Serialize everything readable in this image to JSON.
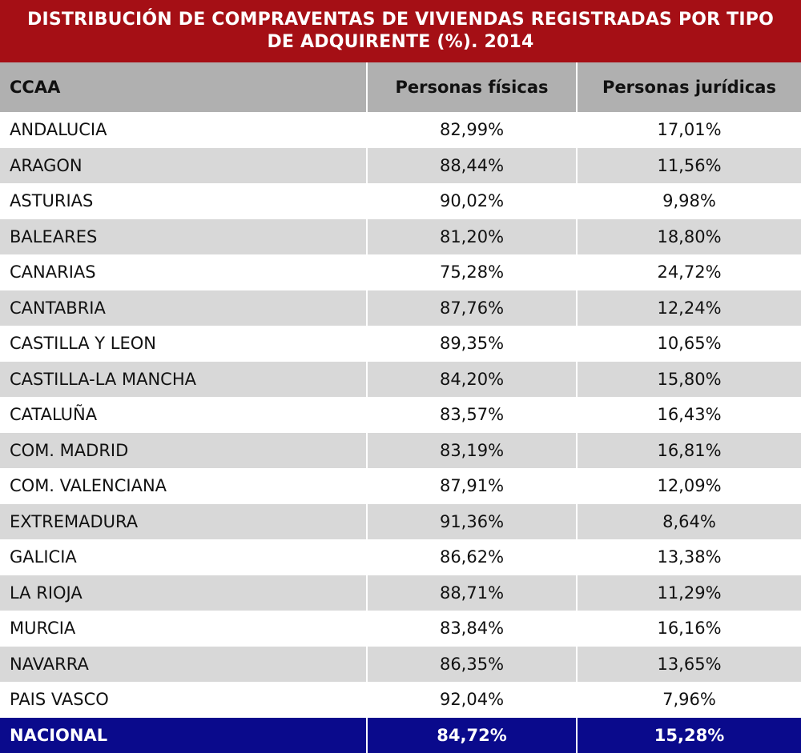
{
  "title": "DISTRIBUCIÓN DE COMPRAVENTAS DE VIVIENDAS REGISTRADAS POR TIPO DE ADQUIRENTE (%). 2014",
  "columns": [
    "CCAA",
    "Personas físicas",
    "Personas jurídicas"
  ],
  "rows": [
    {
      "region": "ANDALUCIA",
      "fisicas": "82,99%",
      "juridicas": "17,01%"
    },
    {
      "region": "ARAGON",
      "fisicas": "88,44%",
      "juridicas": "11,56%"
    },
    {
      "region": "ASTURIAS",
      "fisicas": "90,02%",
      "juridicas": "9,98%"
    },
    {
      "region": "BALEARES",
      "fisicas": "81,20%",
      "juridicas": "18,80%"
    },
    {
      "region": "CANARIAS",
      "fisicas": "75,28%",
      "juridicas": "24,72%"
    },
    {
      "region": "CANTABRIA",
      "fisicas": "87,76%",
      "juridicas": "12,24%"
    },
    {
      "region": "CASTILLA Y LEON",
      "fisicas": "89,35%",
      "juridicas": "10,65%"
    },
    {
      "region": "CASTILLA-LA MANCHA",
      "fisicas": "84,20%",
      "juridicas": "15,80%"
    },
    {
      "region": "CATALUÑA",
      "fisicas": "83,57%",
      "juridicas": "16,43%"
    },
    {
      "region": "COM. MADRID",
      "fisicas": "83,19%",
      "juridicas": "16,81%"
    },
    {
      "region": "COM. VALENCIANA",
      "fisicas": "87,91%",
      "juridicas": "12,09%"
    },
    {
      "region": "EXTREMADURA",
      "fisicas": "91,36%",
      "juridicas": "8,64%"
    },
    {
      "region": "GALICIA",
      "fisicas": "86,62%",
      "juridicas": "13,38%"
    },
    {
      "region": "LA RIOJA",
      "fisicas": "88,71%",
      "juridicas": "11,29%"
    },
    {
      "region": "MURCIA",
      "fisicas": "83,84%",
      "juridicas": "16,16%"
    },
    {
      "region": "NAVARRA",
      "fisicas": "86,35%",
      "juridicas": "13,65%"
    },
    {
      "region": "PAIS VASCO",
      "fisicas": "92,04%",
      "juridicas": "7,96%"
    }
  ],
  "total": {
    "region": "NACIONAL",
    "fisicas": "84,72%",
    "juridicas": "15,28%"
  },
  "colors": {
    "title_bg": "#a50f15",
    "header_bg": "#b0b0b0",
    "stripe_bg": "#d8d8d8",
    "total_bg": "#0a0a8c"
  }
}
